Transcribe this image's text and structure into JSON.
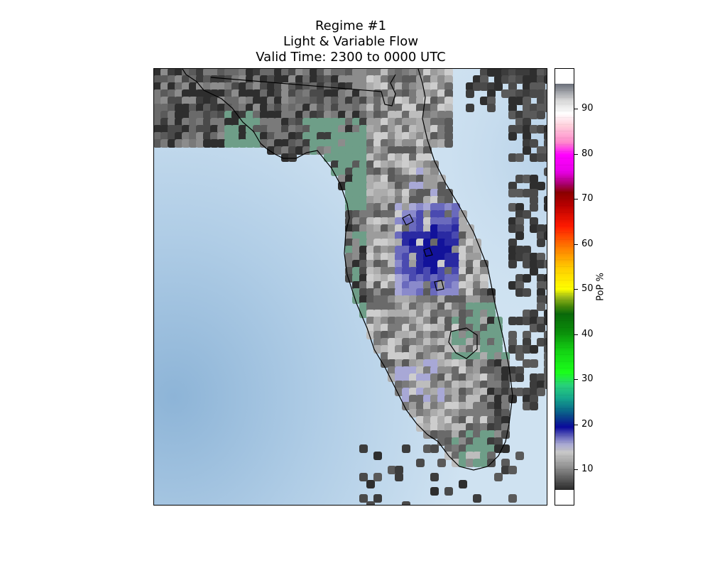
{
  "title": {
    "line1": "Regime #1",
    "line2": "Light & Variable Flow",
    "line3": "Valid Time: 2300 to 0000 UTC"
  },
  "colorbar": {
    "label": "PoP %",
    "min": 2,
    "max": 99,
    "ticks": [
      10,
      20,
      30,
      40,
      50,
      60,
      70,
      80,
      90
    ],
    "stops": [
      {
        "value": 2,
        "color": "#2a2a2a"
      },
      {
        "value": 8,
        "color": "#9a9a9a"
      },
      {
        "value": 11,
        "color": "#c8c8c8"
      },
      {
        "value": 13,
        "color": "#a6a6d2"
      },
      {
        "value": 15,
        "color": "#5c5cb8"
      },
      {
        "value": 17,
        "color": "#0a0a9c"
      },
      {
        "value": 19,
        "color": "#0a3a8c"
      },
      {
        "value": 21,
        "color": "#0a6a8a"
      },
      {
        "value": 24,
        "color": "#16a88c"
      },
      {
        "value": 27,
        "color": "#28d07a"
      },
      {
        "value": 30,
        "color": "#1aff1a"
      },
      {
        "value": 35,
        "color": "#14d414"
      },
      {
        "value": 40,
        "color": "#0a8a0a"
      },
      {
        "value": 44,
        "color": "#0a6a0a"
      },
      {
        "value": 46,
        "color": "#4a8a0a"
      },
      {
        "value": 48,
        "color": "#9ab81a"
      },
      {
        "value": 50,
        "color": "#ffff00"
      },
      {
        "value": 55,
        "color": "#ffcc00"
      },
      {
        "value": 60,
        "color": "#ff7a00"
      },
      {
        "value": 65,
        "color": "#ff1a00"
      },
      {
        "value": 70,
        "color": "#b80000"
      },
      {
        "value": 73,
        "color": "#8a0000"
      },
      {
        "value": 75,
        "color": "#a8006a"
      },
      {
        "value": 78,
        "color": "#e800e8"
      },
      {
        "value": 82,
        "color": "#ff00ff"
      },
      {
        "value": 85,
        "color": "#ff88cc"
      },
      {
        "value": 89,
        "color": "#ffd0dc"
      },
      {
        "value": 92,
        "color": "#ffffff"
      },
      {
        "value": 95,
        "color": "#d8d8d8"
      },
      {
        "value": 99,
        "color": "#6a6f7a"
      }
    ]
  },
  "colors": {
    "water": "#c5dbed",
    "water_deep": "#8fb6d8",
    "low_pop_green": "#6e9e88",
    "land_gray": "#8a8a8a",
    "high_pop_blue": "#1a1aa0",
    "coastline": "#000000"
  }
}
